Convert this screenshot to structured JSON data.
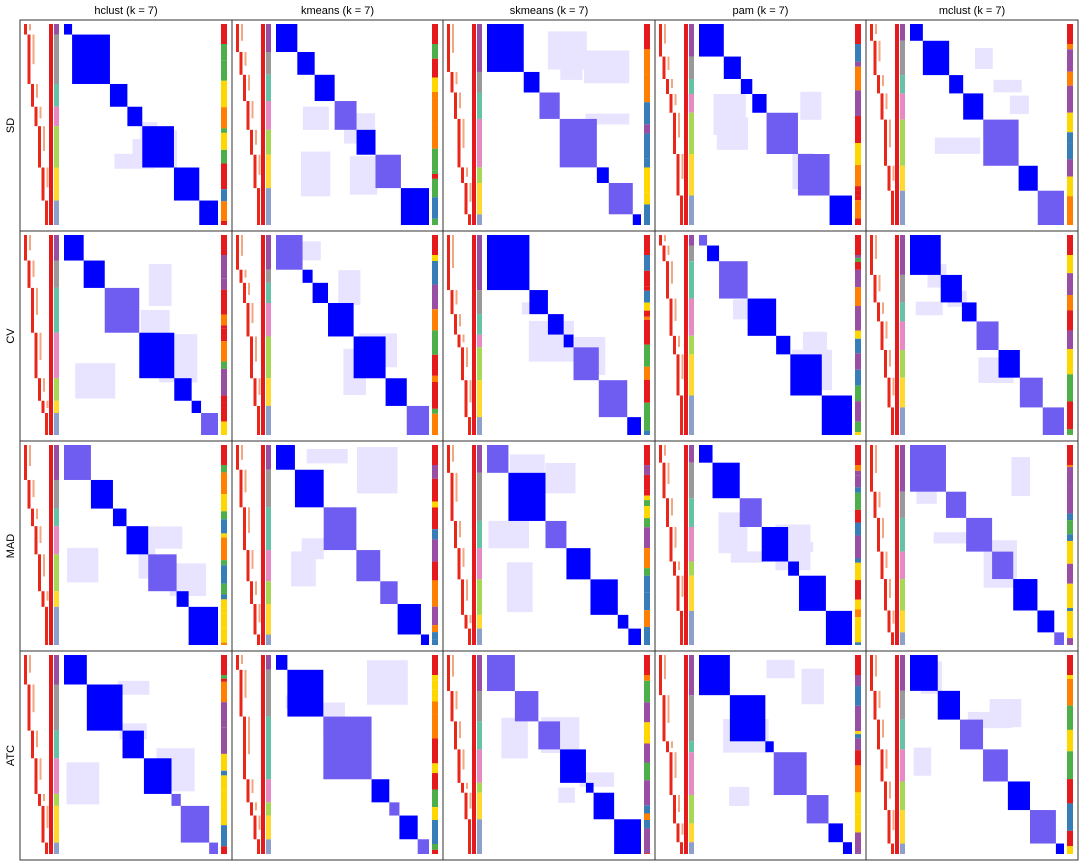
{
  "columns": [
    "hclust (k = 7)",
    "kmeans (k = 7)",
    "skmeans (k = 7)",
    "pam (k = 7)",
    "mclust (k = 7)"
  ],
  "rows": [
    "SD",
    "CV",
    "MAD",
    "ATC"
  ]
}
